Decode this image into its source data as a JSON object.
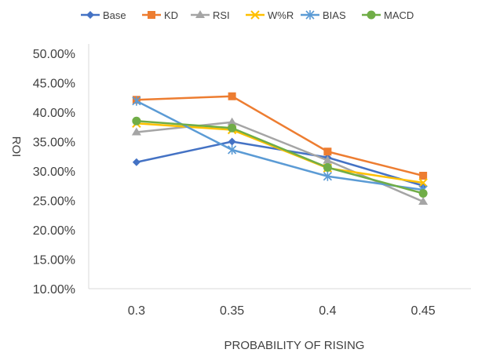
{
  "chart_data": {
    "type": "line",
    "xlabel": "PROBABILITY OF RISING",
    "ylabel": "ROI",
    "categories": [
      "0.3",
      "0.35",
      "0.4",
      "0.45"
    ],
    "ylim": [
      0.1,
      0.5
    ],
    "yticks": [
      "10.00%",
      "15.00%",
      "20.00%",
      "25.00%",
      "30.00%",
      "35.00%",
      "40.00%",
      "45.00%",
      "50.00%"
    ],
    "grid": false,
    "legend_position": "top",
    "series": [
      {
        "name": "Base",
        "color": "#4472C4",
        "marker": "diamond",
        "values": [
          0.315,
          0.35,
          0.323,
          0.275
        ]
      },
      {
        "name": "KD",
        "color": "#ED7D31",
        "marker": "square",
        "values": [
          0.421,
          0.427,
          0.333,
          0.292
        ]
      },
      {
        "name": "RSI",
        "color": "#A5A5A5",
        "marker": "triangle",
        "values": [
          0.366,
          0.383,
          0.318,
          0.248
        ]
      },
      {
        "name": "W%R",
        "color": "#FFC000",
        "marker": "x",
        "values": [
          0.381,
          0.37,
          0.305,
          0.28
        ]
      },
      {
        "name": "BIAS",
        "color": "#5B9BD5",
        "marker": "star",
        "values": [
          0.419,
          0.336,
          0.291,
          0.268
        ]
      },
      {
        "name": "MACD",
        "color": "#70AD47",
        "marker": "circle",
        "values": [
          0.385,
          0.373,
          0.306,
          0.262
        ]
      }
    ]
  }
}
